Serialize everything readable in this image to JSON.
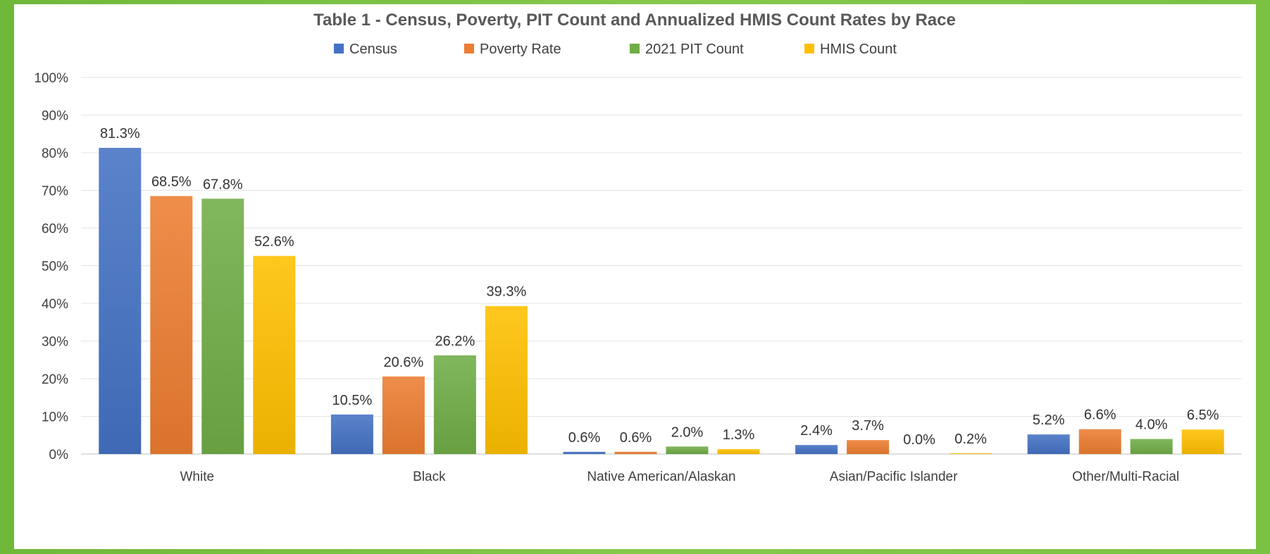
{
  "chart_data": {
    "type": "bar",
    "title": "Table 1 - Census, Poverty, PIT Count and Annualized HMIS Count Rates by Race",
    "xlabel": "",
    "ylabel": "",
    "categories": [
      "White",
      "Black",
      "Native American/Alaskan",
      "Asian/Pacific Islander",
      "Other/Multi-Racial"
    ],
    "series": [
      {
        "name": "Census",
        "color": "#4472c4",
        "values": [
          81.3,
          10.5,
          0.6,
          2.4,
          5.2
        ],
        "labels": [
          "81.3%",
          "10.5%",
          "0.6%",
          "2.4%",
          "5.2%"
        ]
      },
      {
        "name": "Poverty Rate",
        "color": "#ed7d31",
        "values": [
          68.5,
          20.6,
          0.6,
          3.7,
          6.6
        ],
        "labels": [
          "68.5%",
          "20.6%",
          "0.6%",
          "3.7%",
          "6.6%"
        ]
      },
      {
        "name": "2021 PIT Count",
        "color": "#70ad47",
        "values": [
          67.8,
          26.2,
          2.0,
          0.0,
          4.0
        ],
        "labels": [
          "67.8%",
          "26.2%",
          "2.0%",
          "0.0%",
          "4.0%"
        ]
      },
      {
        "name": "HMIS Count",
        "color": "#ffc000",
        "values": [
          52.6,
          39.3,
          1.3,
          0.2,
          6.5
        ],
        "labels": [
          "52.6%",
          "39.3%",
          "1.3%",
          "0.2%",
          "6.5%"
        ]
      }
    ],
    "ylim": [
      0,
      100
    ],
    "yticks": [
      "0%",
      "10%",
      "20%",
      "30%",
      "40%",
      "50%",
      "60%",
      "70%",
      "80%",
      "90%",
      "100%"
    ],
    "grid": true,
    "legend_position": "top"
  }
}
